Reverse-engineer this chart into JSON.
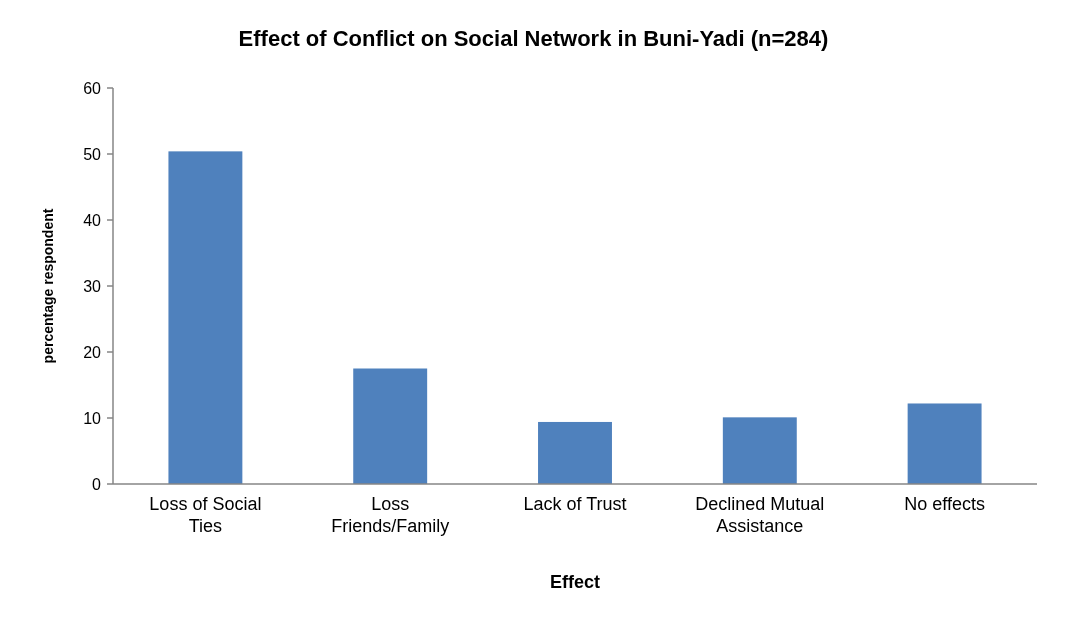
{
  "chart_data": {
    "type": "bar",
    "title": "Effect of Conflict on Social Network in Buni-Yadi (n=284)",
    "xlabel": "Effect",
    "ylabel": "percentage respondent",
    "categories": [
      "Loss of Social Ties",
      "Loss Friends/Family",
      "Lack of Trust",
      "Declined Mutual Assistance",
      "No effects"
    ],
    "values": [
      50.4,
      17.5,
      9.4,
      10.1,
      12.2
    ],
    "color": "#4f81bd",
    "ylim": [
      0,
      60
    ],
    "yticks": [
      0,
      10,
      20,
      30,
      40,
      50,
      60
    ],
    "grid": false
  }
}
